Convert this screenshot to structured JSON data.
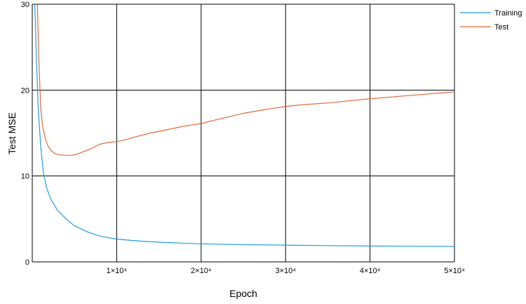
{
  "chart_data": {
    "type": "line",
    "xlabel": "Epoch",
    "ylabel": "Test MSE",
    "xlim": [
      0,
      50000
    ],
    "ylim": [
      0,
      30
    ],
    "grid": true,
    "legend_position": "top-right",
    "x_ticks": [
      {
        "value": 10000,
        "label": "1×10⁴"
      },
      {
        "value": 20000,
        "label": "2×10⁴"
      },
      {
        "value": 30000,
        "label": "3×10⁴"
      },
      {
        "value": 40000,
        "label": "4×10⁴"
      },
      {
        "value": 50000,
        "label": "5×10⁴"
      }
    ],
    "y_ticks": [
      {
        "value": 0,
        "label": "0"
      },
      {
        "value": 10,
        "label": "10"
      },
      {
        "value": 20,
        "label": "20"
      },
      {
        "value": 30,
        "label": "30"
      }
    ],
    "series": [
      {
        "name": "Training",
        "color": "#1f9fdf",
        "x": [
          300,
          500,
          700,
          1000,
          1300,
          1700,
          2200,
          3000,
          4000,
          5000,
          6500,
          8000,
          10000,
          13000,
          16000,
          20000,
          25000,
          30000,
          35000,
          40000,
          45000,
          50000
        ],
        "y": [
          30,
          23.5,
          18,
          13.5,
          10.5,
          8.6,
          7.3,
          6.0,
          5.0,
          4.2,
          3.5,
          3.0,
          2.65,
          2.4,
          2.25,
          2.1,
          2.0,
          1.95,
          1.9,
          1.85,
          1.82,
          1.8
        ]
      },
      {
        "name": "Test",
        "color": "#e2693a",
        "x": [
          600,
          800,
          1000,
          1200,
          1500,
          1800,
          2200,
          2700,
          3300,
          4000,
          4500,
          5200,
          6000,
          7000,
          8000,
          9000,
          10000,
          11000,
          12000,
          14000,
          16000,
          18000,
          20000,
          22000,
          25000,
          28000,
          30000,
          32000,
          35000,
          40000,
          45000,
          50000
        ],
        "y": [
          30,
          23,
          18,
          16,
          14.5,
          13.6,
          13.0,
          12.6,
          12.45,
          12.4,
          12.4,
          12.5,
          12.8,
          13.2,
          13.7,
          13.9,
          14.0,
          14.2,
          14.5,
          15.0,
          15.4,
          15.8,
          16.1,
          16.6,
          17.3,
          17.8,
          18.1,
          18.3,
          18.5,
          19.0,
          19.4,
          19.8
        ]
      }
    ]
  }
}
